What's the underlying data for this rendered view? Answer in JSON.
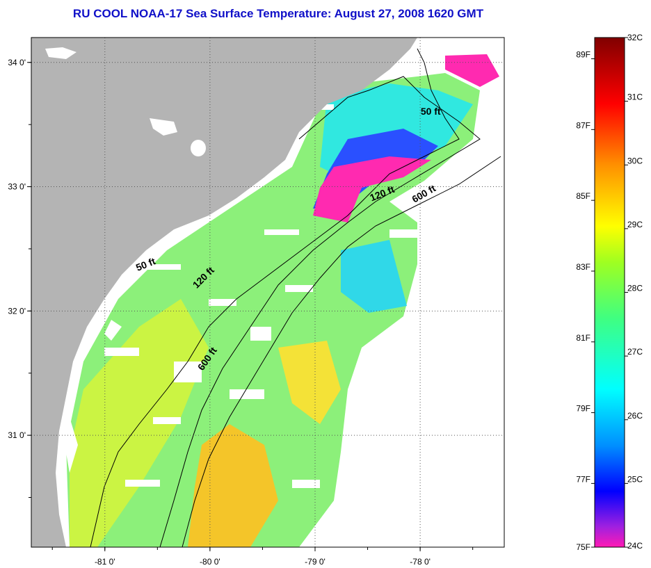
{
  "title": "RU COOL  NOAA-17  Sea Surface Temperature:  August 27, 2008 1620 GMT",
  "map": {
    "lon_range": [
      -81.7,
      -77.2
    ],
    "lat_range": [
      30.1,
      34.2
    ],
    "x_ticks": [
      {
        "lon": -81,
        "label": "-81 0'"
      },
      {
        "lon": -80,
        "label": "-80 0'"
      },
      {
        "lon": -79,
        "label": "-79 0'"
      },
      {
        "lon": -78,
        "label": "-78 0'"
      }
    ],
    "y_ticks": [
      {
        "lat": 34,
        "label": "34 0'"
      },
      {
        "lat": 33,
        "label": "33 0'"
      },
      {
        "lat": 32,
        "label": "32 0'"
      },
      {
        "lat": 31,
        "label": "31 0'"
      }
    ],
    "contour_labels": [
      {
        "text": "50 ft",
        "lon": -77.9,
        "lat": 33.58,
        "angle": 0
      },
      {
        "text": "120 ft",
        "lon": -78.35,
        "lat": 32.92,
        "angle": -22
      },
      {
        "text": "600 ft",
        "lon": -77.95,
        "lat": 32.92,
        "angle": -30
      },
      {
        "text": "50 ft",
        "lon": -80.6,
        "lat": 32.35,
        "angle": -22
      },
      {
        "text": "120 ft",
        "lon": -80.04,
        "lat": 32.25,
        "angle": -45
      },
      {
        "text": "600 ft",
        "lon": -80.0,
        "lat": 31.6,
        "angle": -55
      }
    ],
    "colors": {
      "land": "#b4b4b4",
      "no_data": "#ffffff",
      "grid": "#555555"
    }
  },
  "colorbar": {
    "celsius": [
      "32C",
      "31C",
      "30C",
      "29C",
      "28C",
      "27C",
      "26C",
      "25C",
      "24C"
    ],
    "fahrenheit": [
      "89F",
      "87F",
      "85F",
      "83F",
      "81F",
      "79F",
      "77F",
      "75F"
    ],
    "c_range": [
      24,
      32
    ],
    "f_values": [
      89,
      87,
      85,
      83,
      81,
      79,
      77,
      75
    ],
    "color_stops": [
      {
        "t": 0.0,
        "color": "#ff1ab4"
      },
      {
        "t": 0.04,
        "color": "#a020e0"
      },
      {
        "t": 0.11,
        "color": "#0000ff"
      },
      {
        "t": 0.2,
        "color": "#0090ff"
      },
      {
        "t": 0.31,
        "color": "#00ffff"
      },
      {
        "t": 0.45,
        "color": "#40ff80"
      },
      {
        "t": 0.56,
        "color": "#a0ff20"
      },
      {
        "t": 0.63,
        "color": "#ffff00"
      },
      {
        "t": 0.75,
        "color": "#ff9000"
      },
      {
        "t": 0.87,
        "color": "#ff0000"
      },
      {
        "t": 1.0,
        "color": "#800000"
      }
    ]
  }
}
